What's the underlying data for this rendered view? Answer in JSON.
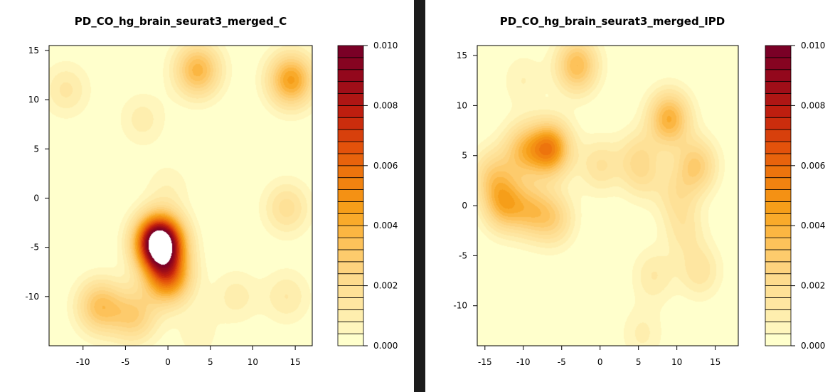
{
  "panels": [
    {
      "title": "PD_CO_hg_brain_seurat3_merged_C",
      "x_ticks": [
        "-10",
        "-5",
        "0",
        "5",
        "10",
        "15"
      ],
      "y_ticks": [
        "15",
        "10",
        "5",
        "0",
        "-5",
        "-10"
      ],
      "colorbar_ticks": [
        "0.010",
        "0.008",
        "0.006",
        "0.004",
        "0.002",
        "0.000"
      ]
    },
    {
      "title": "PD_CO_hg_brain_seurat3_merged_IPD",
      "x_ticks": [
        "-15",
        "-10",
        "-5",
        "0",
        "5",
        "10",
        "15"
      ],
      "y_ticks": [
        "15",
        "10",
        "5",
        "0",
        "-5",
        "-10"
      ],
      "colorbar_ticks": [
        "0.010",
        "0.008",
        "0.006",
        "0.004",
        "0.002",
        "0.000"
      ]
    }
  ],
  "chart_data": [
    {
      "type": "heatmap",
      "subtype": "2d-density-contour",
      "title": "PD_CO_hg_brain_seurat3_merged_C",
      "xlim": [
        -14,
        17
      ],
      "ylim": [
        -15,
        15.5
      ],
      "x_ticks": [
        -10,
        -5,
        0,
        5,
        10,
        15
      ],
      "y_ticks": [
        -10,
        -5,
        0,
        5,
        10,
        15
      ],
      "color_scale": {
        "min": 0,
        "max": 0.01,
        "levels": 25,
        "ticks": [
          0,
          0.002,
          0.004,
          0.006,
          0.008,
          0.01
        ],
        "palette": [
          "#ffffcc",
          "#fee8a4",
          "#fdd98a",
          "#fdc25a",
          "#f7a21a",
          "#f07f0e",
          "#e3520b",
          "#c3210e",
          "#9b0b19",
          "#7a0026"
        ],
        "above_max_color": "#ffffff"
      },
      "density_peaks": [
        {
          "x": -1,
          "y": -4.5,
          "density": 0.012
        },
        {
          "x": 0,
          "y": -8,
          "density": 0.0055
        },
        {
          "x": -8,
          "y": -11,
          "density": 0.0033
        },
        {
          "x": -4,
          "y": -12,
          "density": 0.0026
        },
        {
          "x": 3.5,
          "y": 13,
          "density": 0.0038
        },
        {
          "x": 14.5,
          "y": 12,
          "density": 0.0045
        },
        {
          "x": 14,
          "y": -1,
          "density": 0.0018
        },
        {
          "x": -12,
          "y": 11,
          "density": 0.0013
        },
        {
          "x": -3,
          "y": 8,
          "density": 0.001
        },
        {
          "x": 0,
          "y": 1,
          "density": 0.0007
        },
        {
          "x": 14,
          "y": -10,
          "density": 0.0012
        },
        {
          "x": 8,
          "y": -10,
          "density": 0.001
        },
        {
          "x": 3.5,
          "y": -14,
          "density": 0.0006
        }
      ]
    },
    {
      "type": "heatmap",
      "subtype": "2d-density-contour",
      "title": "PD_CO_hg_brain_seurat3_merged_IPD",
      "xlim": [
        -16,
        18
      ],
      "ylim": [
        -14,
        16
      ],
      "x_ticks": [
        -15,
        -10,
        -5,
        0,
        5,
        10,
        15
      ],
      "y_ticks": [
        -10,
        -5,
        0,
        5,
        10,
        15
      ],
      "color_scale": {
        "min": 0,
        "max": 0.01,
        "levels": 25,
        "ticks": [
          0,
          0.002,
          0.004,
          0.006,
          0.008,
          0.01
        ],
        "palette": [
          "#ffffcc",
          "#fee8a4",
          "#fdd98a",
          "#fdc25a",
          "#f7a21a",
          "#f07f0e",
          "#e3520b",
          "#c3210e",
          "#9b0b19",
          "#7a0026"
        ],
        "above_max_color": "#ffffff"
      },
      "density_peaks": [
        {
          "x": -6.5,
          "y": 5.7,
          "density": 0.0052
        },
        {
          "x": -10,
          "y": 5.5,
          "density": 0.003
        },
        {
          "x": -14,
          "y": 3,
          "density": 0.0022
        },
        {
          "x": -12.5,
          "y": 0.2,
          "density": 0.0036
        },
        {
          "x": -9,
          "y": -0.5,
          "density": 0.0026
        },
        {
          "x": -6,
          "y": -1.3,
          "density": 0.0022
        },
        {
          "x": -3,
          "y": 14,
          "density": 0.0036
        },
        {
          "x": 9,
          "y": 8.7,
          "density": 0.004
        },
        {
          "x": 12.5,
          "y": 4,
          "density": 0.0028
        },
        {
          "x": 10,
          "y": 1,
          "density": 0.0014
        },
        {
          "x": 11,
          "y": -2.5,
          "density": 0.0012
        },
        {
          "x": 0,
          "y": 4,
          "density": 0.0016
        },
        {
          "x": 5,
          "y": 5,
          "density": 0.0014
        },
        {
          "x": 5.5,
          "y": 3,
          "density": 0.0012
        },
        {
          "x": 7,
          "y": -7,
          "density": 0.0012
        },
        {
          "x": 13,
          "y": -6.5,
          "density": 0.0015
        },
        {
          "x": -10,
          "y": 12.5,
          "density": 0.0008
        },
        {
          "x": 5.5,
          "y": -12.8,
          "density": 0.0009
        }
      ]
    }
  ]
}
